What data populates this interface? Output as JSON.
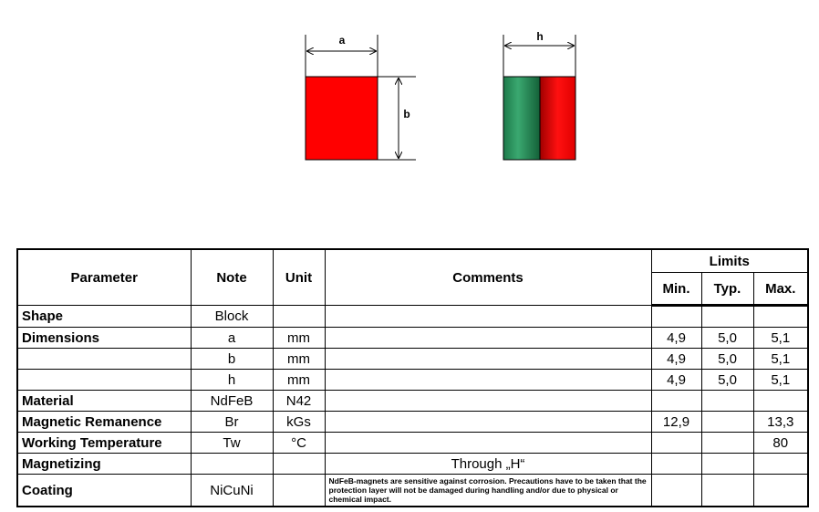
{
  "diagram": {
    "label_a": "a",
    "label_b": "b",
    "label_h": "h"
  },
  "table": {
    "header": {
      "parameter": "Parameter",
      "note": "Note",
      "unit": "Unit",
      "comments": "Comments",
      "limits": "Limits"
    },
    "subheader": {
      "min": "Min.",
      "typ": "Typ.",
      "max": "Max."
    },
    "rows": [
      {
        "parameter": "Shape",
        "note": "Block"
      },
      {
        "parameter": "Dimensions",
        "note": "a",
        "unit": "mm",
        "min": "4,9",
        "typ": "5,0",
        "max": "5,1"
      },
      {
        "note": "b",
        "unit": "mm",
        "min": "4,9",
        "typ": "5,0",
        "max": "5,1"
      },
      {
        "note": "h",
        "unit": "mm",
        "min": "4,9",
        "typ": "5,0",
        "max": "5,1"
      },
      {
        "parameter": "Material",
        "note": "NdFeB",
        "unit": "N42"
      },
      {
        "parameter": "Magnetic Remanence",
        "note": "Br",
        "unit": "kGs",
        "min": "12,9",
        "max": "13,3"
      },
      {
        "parameter": "Working Temperature",
        "note": "Tw",
        "unit": "°C",
        "max": "80"
      },
      {
        "parameter": "Magnetizing",
        "comments": "Through „H“"
      },
      {
        "parameter": "Coating",
        "note": "NiCuNi",
        "comments": "NdFeB-magnets are sensitive against corrosion. Precautions have to be taken that the protection layer will not be damaged during handling and/or due to physical or chemical impact."
      }
    ]
  }
}
